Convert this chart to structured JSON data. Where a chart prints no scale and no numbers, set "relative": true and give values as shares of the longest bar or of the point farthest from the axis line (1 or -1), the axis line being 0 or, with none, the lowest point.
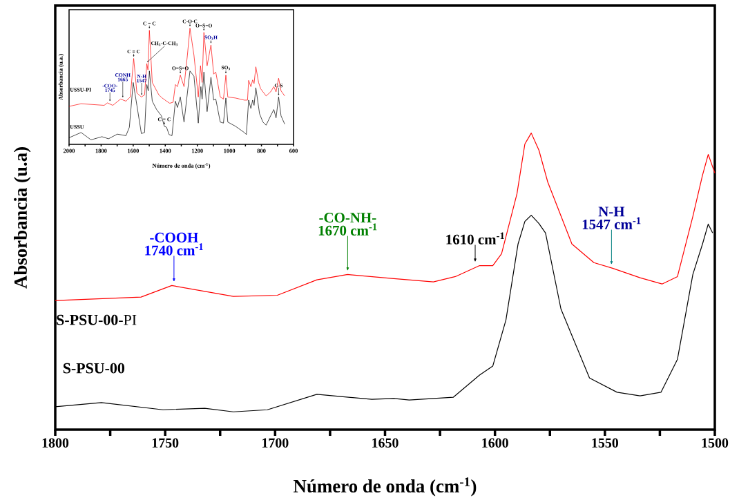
{
  "chart_data": [
    {
      "type": "line",
      "relative": true,
      "xlabel": "Número de onda (cm$^{-1}$)",
      "ylabel": "Absorbancia (u.a)",
      "xlim": [
        1800,
        1500
      ],
      "xticks": [
        1800,
        {
          "value": 1775,
          "label": null
        },
        1750,
        {
          "value": 1725,
          "label": null
        },
        1700,
        {
          "value": 1675,
          "label": null
        },
        1650,
        {
          "value": 1625,
          "label": null
        },
        1600,
        {
          "value": 1575,
          "label": null
        },
        1550,
        {
          "value": 1525,
          "label": null
        },
        1500
      ],
      "tick_labels": "x",
      "series": [
        {
          "name": "**S-PSU-00**-PI",
          "color": "#ff0000",
          "x": [
            1800,
            1761,
            1747,
            1719,
            1699,
            1681,
            1667,
            1646,
            1628,
            1618,
            1607,
            1601,
            1597,
            1590,
            1586.4,
            1583.5,
            1580,
            1576,
            1565,
            1555,
            1546.5,
            1534,
            1524,
            1517,
            1510,
            1505.6,
            1503,
            1500
          ],
          "values": [
            0.435,
            0.447,
            0.486,
            0.449,
            0.453,
            0.505,
            0.523,
            0.509,
            0.498,
            0.516,
            0.553,
            0.553,
            0.593,
            0.795,
            0.963,
            1.0,
            0.942,
            0.835,
            0.626,
            0.563,
            0.544,
            0.512,
            0.491,
            0.516,
            0.719,
            0.858,
            0.928,
            0.865
          ]
        },
        {
          "name": "S-PSU-00",
          "color": "#000000",
          "x": [
            1800,
            1779,
            1751,
            1732,
            1719,
            1703.5,
            1681,
            1656,
            1646,
            1639,
            1619,
            1607,
            1601,
            1595,
            1589.5,
            1586.4,
            1583.5,
            1580,
            1577,
            1570,
            1557,
            1544.5,
            1534,
            1524.5,
            1517,
            1510,
            1505.6,
            1503,
            1501
          ],
          "values": [
            0.077,
            0.091,
            0.067,
            0.072,
            0.06,
            0.067,
            0.119,
            0.102,
            0.105,
            0.1,
            0.109,
            0.184,
            0.214,
            0.37,
            0.626,
            0.702,
            0.723,
            0.695,
            0.663,
            0.407,
            0.174,
            0.126,
            0.114,
            0.126,
            0.237,
            0.523,
            0.626,
            0.693,
            0.663
          ]
        }
      ],
      "annotations": [
        "-COOH",
        {
          "text": "1740 cm$^{-1}$",
          "x": 1746,
          "y": 0.486
        },
        "-CO-NH-",
        {
          "text": "1670 cm$^{-1}$",
          "x": 1667,
          "y": 0.523
        },
        {
          "text": "1610 cm$^{-1}$",
          "x": 1609,
          "y": 0.553
        },
        "N-H",
        {
          "text": "1547 cm$^{-1}$",
          "x": 1547,
          "y": 0.544
        }
      ]
    },
    {
      "type": "line",
      "relative": true,
      "xlabel": "Número de onda (cm$^{-1}$)",
      "ylabel": "Absorbancia (u.a.)",
      "xlim": [
        2000,
        600
      ],
      "xticks": [
        2000,
        {
          "value": 1900,
          "label": null
        },
        1800,
        {
          "value": 1700,
          "label": null
        },
        1600,
        {
          "value": 1500,
          "label": null
        },
        1400,
        {
          "value": 1300,
          "label": null
        },
        1200,
        {
          "value": 1100,
          "label": null
        },
        1000,
        {
          "value": 900,
          "label": null
        },
        800,
        {
          "value": 700,
          "label": null
        },
        600
      ],
      "tick_labels": "x",
      "series": [
        {
          "name": "USSU-PI",
          "color": "#ff0000",
          "x": [
            2000,
            1925,
            1781,
            1761,
            1727,
            1679,
            1645,
            1618,
            1597,
            1577,
            1549,
            1529,
            1515,
            1508,
            1499,
            1481,
            1440,
            1419,
            1392,
            1372,
            1351,
            1337,
            1324,
            1306,
            1283,
            1262,
            1246,
            1221,
            1194,
            1180,
            1170,
            1159,
            1139,
            1115,
            1098,
            1085,
            1057,
            1037,
            1022,
            1010,
            962,
            907,
            887,
            880,
            866,
            855,
            846,
            835,
            818,
            805,
            771,
            743,
            723,
            709,
            693,
            678,
            655
          ],
          "values": [
            0.327,
            0.35,
            0.336,
            0.357,
            0.336,
            0.39,
            0.372,
            0.408,
            0.74,
            0.443,
            0.408,
            0.426,
            0.695,
            0.641,
            0.982,
            0.533,
            0.426,
            0.399,
            0.372,
            0.354,
            0.363,
            0.515,
            0.497,
            0.596,
            0.497,
            0.767,
            1.0,
            0.767,
            0.408,
            0.677,
            0.533,
            0.964,
            0.677,
            0.856,
            0.605,
            0.623,
            0.408,
            0.39,
            0.596,
            0.408,
            0.399,
            0.381,
            0.381,
            0.551,
            0.497,
            0.555,
            0.524,
            0.668,
            0.533,
            0.479,
            0.417,
            0.452,
            0.497,
            0.452,
            0.569,
            0.461,
            0.417
          ]
        },
        {
          "name": "USSU",
          "color": "#000000",
          "x": [
            2000,
            1925,
            1863,
            1795,
            1754,
            1699,
            1645,
            1624,
            1600,
            1577,
            1549,
            1529,
            1515,
            1506,
            1499,
            1481,
            1454,
            1424,
            1406,
            1392,
            1376,
            1358,
            1337,
            1324,
            1306,
            1283,
            1246,
            1221,
            1194,
            1178,
            1170,
            1159,
            1139,
            1115,
            1098,
            1085,
            1057,
            1037,
            1022,
            1010,
            962,
            907,
            894,
            880,
            866,
            855,
            846,
            835,
            812,
            791,
            771,
            743,
            723,
            709,
            693,
            678,
            655
          ],
          "values": [
            0.057,
            0.102,
            0.039,
            0.066,
            0.048,
            0.088,
            0.075,
            0.147,
            0.533,
            0.336,
            0.093,
            0.102,
            0.515,
            0.461,
            0.632,
            0.372,
            0.3,
            0.246,
            0.156,
            0.147,
            0.084,
            0.075,
            0.372,
            0.318,
            0.408,
            0.192,
            0.632,
            0.587,
            0.183,
            0.497,
            0.39,
            0.623,
            0.282,
            0.578,
            0.381,
            0.39,
            0.192,
            0.183,
            0.399,
            0.192,
            0.156,
            0.102,
            0.084,
            0.381,
            0.309,
            0.381,
            0.336,
            0.488,
            0.264,
            0.192,
            0.165,
            0.246,
            0.3,
            0.228,
            0.408,
            0.246,
            0.174
          ]
        }
      ],
      "annotations": [
        "-COO-",
        {
          "text": "1745",
          "x": 1745,
          "y": 0.357
        },
        "CONH",
        {
          "text": "1665",
          "x": 1665,
          "y": 0.39
        },
        "N-H",
        {
          "text": "1547",
          "x": 1547,
          "y": 0.41
        },
        {
          "text": "C = C",
          "x": 1597,
          "y": 0.74
        },
        {
          "text": "C = C",
          "x": 1499,
          "y": 0.982
        },
        {
          "text": "C-O-C",
          "x": 1246,
          "y": 1.0
        },
        {
          "text": "CH$_{3}$-C-CH$_{3}$",
          "x": 1515,
          "y": 0.695
        },
        {
          "text": "O=S=O",
          "x": 1306,
          "y": 0.596
        },
        {
          "text": "O=S=O",
          "x": 1159,
          "y": 0.964
        },
        {
          "text": "SO$_{3}$H",
          "x": 1115,
          "y": 0.856
        },
        {
          "text": "SO$_{3}$",
          "x": 1022,
          "y": 0.596
        },
        {
          "text": "C = C",
          "x": 1406,
          "y": 0.156
        },
        {
          "text": "C-S",
          "x": 693,
          "y": 0.408
        }
      ]
    }
  ]
}
